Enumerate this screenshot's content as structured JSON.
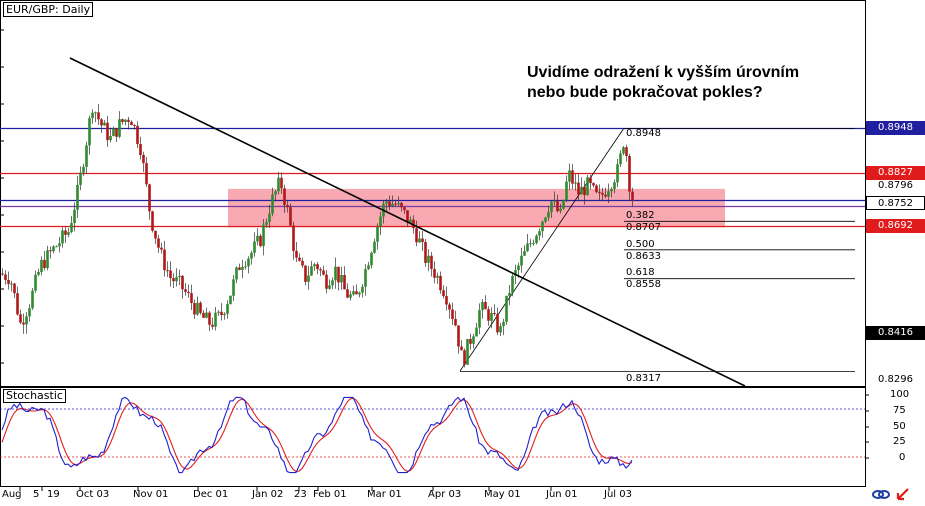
{
  "window_title": "EUR/GBP: Daily",
  "annotation": {
    "line1": "Uvidíme odražení k vyšším úrovním",
    "line2": "nebo bude pokračovat pokles?"
  },
  "stochastic": {
    "label": "Stochastic",
    "levels": [
      "100",
      "75",
      "50",
      "25",
      "0"
    ]
  },
  "price_axis": {
    "labels": [
      "0.8948",
      "0.8827",
      "0.8796",
      "0.8752",
      "0.8692",
      "0.8416",
      "0.8296"
    ],
    "colors": {
      "0.8948": "#1f1fa0",
      "0.8827": "#e01b1b",
      "0.8796": "#ffffff",
      "0.8752": "#ffffff",
      "0.8692": "#e01b1b",
      "0.8416": "#000000",
      "0.8296": "#ffffff"
    }
  },
  "fib_labels": [
    "0.8948",
    "0.382",
    "0.8707",
    "0.500",
    "0.8633",
    "0.618",
    "0.8558",
    "0.8317"
  ],
  "date_labels": [
    "Aug",
    "5",
    "19",
    "Oct 03",
    "Nov 01",
    "Dec 01",
    "Jan 02",
    "23",
    "Feb 01",
    "Mar 01",
    "Apr 03",
    "May 01",
    "Jun 01",
    "Jul 03"
  ],
  "footer_icons": [
    "link-icon",
    "arrow-icon"
  ],
  "colors": {
    "bull": "#2e8b2e",
    "bear": "#b01818",
    "blue_line": "#1f1fa0",
    "red_line": "#e01b1b",
    "zone": "#f8a0a8",
    "trend": "#000000",
    "stoch_k": "#2020d0",
    "stoch_d": "#e02020"
  },
  "chart_data": {
    "type": "candlestick",
    "symbol": "EUR/GBP",
    "timeframe": "Daily",
    "ylim": [
      0.828,
      0.908
    ],
    "horizontal_levels": [
      {
        "value": 0.8948,
        "color": "blue"
      },
      {
        "value": 0.8827,
        "color": "red"
      },
      {
        "value": 0.8752,
        "color": "blue"
      },
      {
        "value": 0.8737,
        "color": "purple"
      },
      {
        "value": 0.8692,
        "color": "red"
      }
    ],
    "resistance_zone": [
      0.869,
      0.879
    ],
    "fibonacci": {
      "high": 0.8948,
      "low": 0.8317,
      "levels": [
        {
          "ratio": "0.382",
          "price": 0.8707
        },
        {
          "ratio": "0.500",
          "price": 0.8633
        },
        {
          "ratio": "0.618",
          "price": 0.8558
        }
      ]
    },
    "last_price": 0.8752,
    "stochastic_levels": [
      80,
      20
    ]
  }
}
